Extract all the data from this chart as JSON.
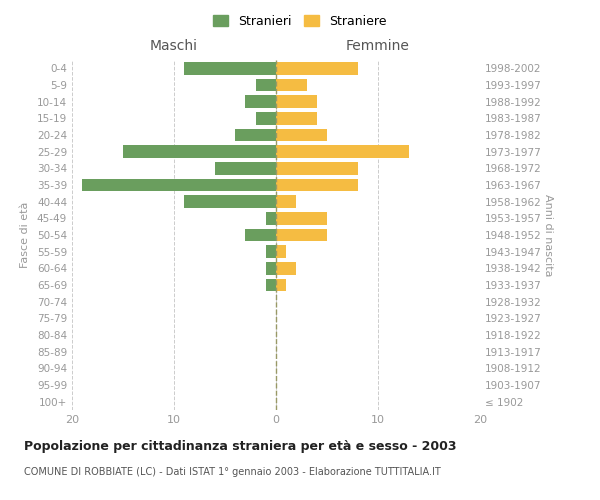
{
  "age_groups": [
    "100+",
    "95-99",
    "90-94",
    "85-89",
    "80-84",
    "75-79",
    "70-74",
    "65-69",
    "60-64",
    "55-59",
    "50-54",
    "45-49",
    "40-44",
    "35-39",
    "30-34",
    "25-29",
    "20-24",
    "15-19",
    "10-14",
    "5-9",
    "0-4"
  ],
  "birth_years": [
    "≤ 1902",
    "1903-1907",
    "1908-1912",
    "1913-1917",
    "1918-1922",
    "1923-1927",
    "1928-1932",
    "1933-1937",
    "1938-1942",
    "1943-1947",
    "1948-1952",
    "1953-1957",
    "1958-1962",
    "1963-1967",
    "1968-1972",
    "1973-1977",
    "1978-1982",
    "1983-1987",
    "1988-1992",
    "1993-1997",
    "1998-2002"
  ],
  "maschi": [
    0,
    0,
    0,
    0,
    0,
    0,
    0,
    1,
    1,
    1,
    3,
    1,
    9,
    19,
    6,
    15,
    4,
    2,
    3,
    2,
    9
  ],
  "femmine": [
    0,
    0,
    0,
    0,
    0,
    0,
    0,
    1,
    2,
    1,
    5,
    5,
    2,
    8,
    8,
    13,
    5,
    4,
    4,
    3,
    8
  ],
  "maschi_color": "#6a9e5e",
  "femmine_color": "#f5bc42",
  "background_color": "#ffffff",
  "grid_color": "#cccccc",
  "title": "Popolazione per cittadinanza straniera per età e sesso - 2003",
  "subtitle": "COMUNE DI ROBBIATE (LC) - Dati ISTAT 1° gennaio 2003 - Elaborazione TUTTITALIA.IT",
  "ylabel_left": "Fasce di età",
  "ylabel_right": "Anni di nascita",
  "xlabel_maschi": "Maschi",
  "xlabel_femmine": "Femmine",
  "legend_maschi": "Stranieri",
  "legend_femmine": "Straniere",
  "xlim": 20
}
